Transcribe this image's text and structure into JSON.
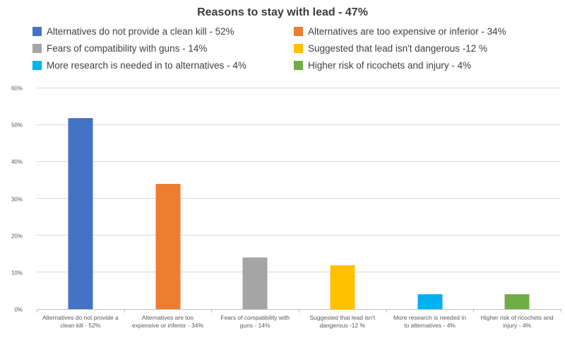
{
  "title": "Reasons to stay with lead - 47%",
  "legend": {
    "items": [
      {
        "label": "Alternatives do not provide a clean kill - 52%",
        "color": "#4472C4"
      },
      {
        "label": "Alternatives are too expensive or inferior - 34%",
        "color": "#ED7D31"
      },
      {
        "label": "Fears of compatibility with guns - 14%",
        "color": "#A5A5A5"
      },
      {
        "label": "Suggested that lead isn't dangerous -12 %",
        "color": "#FFC000"
      },
      {
        "label": "More research is needed in to alternatives - 4%",
        "color": "#00B0F0"
      },
      {
        "label": "Higher risk of ricochets and injury - 4%",
        "color": "#70AD47"
      }
    ]
  },
  "chart_data": {
    "type": "bar",
    "title": "Reasons to stay with lead - 47%",
    "categories": [
      "Alternatives do not provide a clean kill - 52%",
      "Alternatives are too expensive or inferior - 34%",
      "Fears of compatibility with guns - 14%",
      "Suggested that lead isn't dangerous -12 %",
      "More research is needed in to alternatives - 4%",
      "Higher risk of ricochets and injury - 4%"
    ],
    "values": [
      52,
      34,
      14,
      12,
      4,
      4
    ],
    "colors": [
      "#4472C4",
      "#ED7D31",
      "#A5A5A5",
      "#FFC000",
      "#00B0F0",
      "#70AD47"
    ],
    "ylim": [
      0,
      60
    ],
    "ytick_values": [
      60,
      50,
      40,
      30,
      20,
      10,
      0
    ],
    "yticks": [
      "60%",
      "50%",
      "40%",
      "30%",
      "20%",
      "10%",
      "0%"
    ],
    "grid": true,
    "legend_position": "top",
    "xlabel": "",
    "ylabel": ""
  }
}
